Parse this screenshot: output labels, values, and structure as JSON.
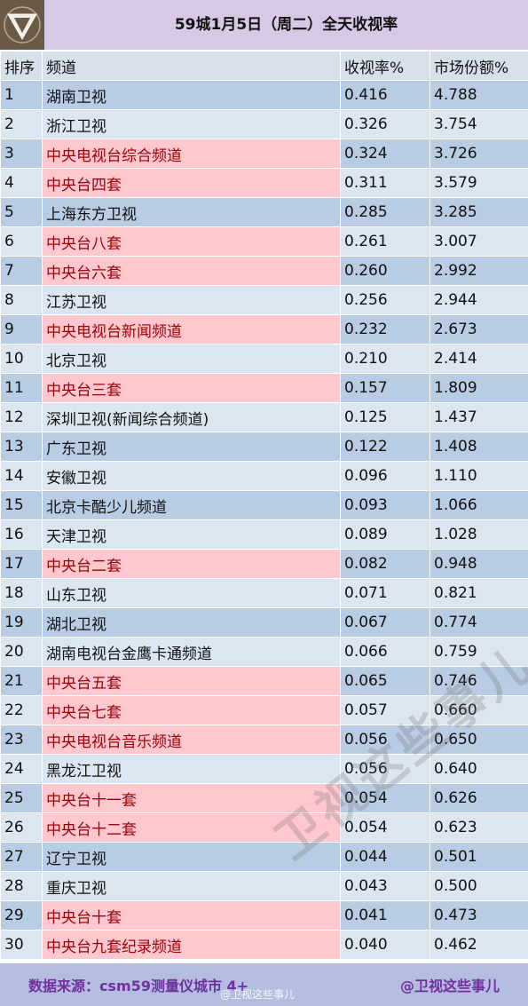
{
  "header": {
    "title": "59城1月5日（周二）全天收视率",
    "logo_icon": "triangle-v-logo-icon"
  },
  "columns": {
    "rank": "排序",
    "channel": "频道",
    "rating": "收视率%",
    "share": "市场份额%"
  },
  "rows": [
    {
      "rank": "1",
      "channel": "湖南卫视",
      "rating": "0.416",
      "share": "4.788",
      "cctv": false
    },
    {
      "rank": "2",
      "channel": "浙江卫视",
      "rating": "0.326",
      "share": "3.754",
      "cctv": false
    },
    {
      "rank": "3",
      "channel": "中央电视台综合频道",
      "rating": "0.324",
      "share": "3.726",
      "cctv": true
    },
    {
      "rank": "4",
      "channel": "中央台四套",
      "rating": "0.311",
      "share": "3.579",
      "cctv": true
    },
    {
      "rank": "5",
      "channel": "上海东方卫视",
      "rating": "0.285",
      "share": "3.285",
      "cctv": false
    },
    {
      "rank": "6",
      "channel": "中央台八套",
      "rating": "0.261",
      "share": "3.007",
      "cctv": true
    },
    {
      "rank": "7",
      "channel": "中央台六套",
      "rating": "0.260",
      "share": "2.992",
      "cctv": true
    },
    {
      "rank": "8",
      "channel": "江苏卫视",
      "rating": "0.256",
      "share": "2.944",
      "cctv": false
    },
    {
      "rank": "9",
      "channel": "中央电视台新闻频道",
      "rating": "0.232",
      "share": "2.673",
      "cctv": true
    },
    {
      "rank": "10",
      "channel": "北京卫视",
      "rating": "0.210",
      "share": "2.414",
      "cctv": false
    },
    {
      "rank": "11",
      "channel": "中央台三套",
      "rating": "0.157",
      "share": "1.809",
      "cctv": true
    },
    {
      "rank": "12",
      "channel": "深圳卫视(新闻综合频道)",
      "rating": "0.125",
      "share": "1.437",
      "cctv": false
    },
    {
      "rank": "13",
      "channel": "广东卫视",
      "rating": "0.122",
      "share": "1.408",
      "cctv": false
    },
    {
      "rank": "14",
      "channel": "安徽卫视",
      "rating": "0.096",
      "share": "1.110",
      "cctv": false
    },
    {
      "rank": "15",
      "channel": "北京卡酷少儿频道",
      "rating": "0.093",
      "share": "1.066",
      "cctv": false
    },
    {
      "rank": "16",
      "channel": "天津卫视",
      "rating": "0.089",
      "share": "1.028",
      "cctv": false
    },
    {
      "rank": "17",
      "channel": "中央台二套",
      "rating": "0.082",
      "share": "0.948",
      "cctv": true
    },
    {
      "rank": "18",
      "channel": "山东卫视",
      "rating": "0.071",
      "share": "0.821",
      "cctv": false
    },
    {
      "rank": "19",
      "channel": "湖北卫视",
      "rating": "0.067",
      "share": "0.774",
      "cctv": false
    },
    {
      "rank": "20",
      "channel": "湖南电视台金鹰卡通频道",
      "rating": "0.066",
      "share": "0.759",
      "cctv": false
    },
    {
      "rank": "21",
      "channel": "中央台五套",
      "rating": "0.065",
      "share": "0.746",
      "cctv": true
    },
    {
      "rank": "22",
      "channel": "中央台七套",
      "rating": "0.057",
      "share": "0.660",
      "cctv": true
    },
    {
      "rank": "23",
      "channel": "中央电视台音乐频道",
      "rating": "0.056",
      "share": "0.650",
      "cctv": true
    },
    {
      "rank": "24",
      "channel": "黑龙江卫视",
      "rating": "0.056",
      "share": "0.640",
      "cctv": false
    },
    {
      "rank": "25",
      "channel": "中央台十一套",
      "rating": "0.054",
      "share": "0.626",
      "cctv": true
    },
    {
      "rank": "26",
      "channel": "中央台十二套",
      "rating": "0.054",
      "share": "0.623",
      "cctv": true
    },
    {
      "rank": "27",
      "channel": "辽宁卫视",
      "rating": "0.044",
      "share": "0.501",
      "cctv": false
    },
    {
      "rank": "28",
      "channel": "重庆卫视",
      "rating": "0.043",
      "share": "0.500",
      "cctv": false
    },
    {
      "rank": "29",
      "channel": "中央台十套",
      "rating": "0.041",
      "share": "0.473",
      "cctv": true
    },
    {
      "rank": "30",
      "channel": "中央台九套纪录频道",
      "rating": "0.040",
      "share": "0.462",
      "cctv": true
    }
  ],
  "footer": {
    "source": "数据来源：csm59测量仪城市 4+",
    "handle": "@卫视这些事儿",
    "weibo_mark": "@卫视这些事儿"
  },
  "watermark": "卫视这些事儿",
  "colors": {
    "cctv_fill": "#ffc7ce",
    "cctv_text": "#9c0006",
    "row_dark": "#b8cce4",
    "row_light": "#dce6f1",
    "title_bg": "#d7c9e6",
    "footer_text": "#7030a0"
  }
}
